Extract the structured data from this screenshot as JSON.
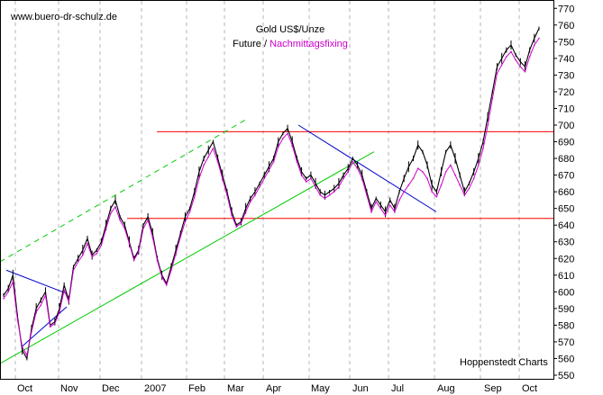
{
  "chart_data": {
    "type": "line",
    "title": "Gold US$/Unze",
    "subtitle_a": "Future",
    "subtitle_sep": " / ",
    "subtitle_b": "Nachmittagsfixing",
    "source_url": "www.buero-dr-schulz.de",
    "credit": "Hoppenstedt Charts",
    "ylim": [
      550,
      775
    ],
    "yticks": [
      550,
      560,
      570,
      580,
      590,
      600,
      610,
      620,
      630,
      640,
      650,
      660,
      670,
      680,
      690,
      700,
      710,
      720,
      730,
      740,
      750,
      760,
      770
    ],
    "xticks": [
      "Oct",
      "Nov",
      "Dec",
      "2007",
      "Feb",
      "Mar",
      "Apr",
      "May",
      "Jun",
      "Jul",
      "Aug",
      "Sep",
      "Oct"
    ],
    "grid": "vertical-dashed",
    "colors": {
      "future": "#000000",
      "fixing": "#cc00cc",
      "resistance": "#ff0000",
      "trend_up": "#00cc00",
      "trend_down": "#0000cc",
      "title": "#000000",
      "subtitle_b": "#cc00cc"
    },
    "series": [
      {
        "name": "Future",
        "values": [
          598,
          602,
          610,
          585,
          565,
          560,
          578,
          590,
          595,
          600,
          580,
          582,
          590,
          604,
          595,
          615,
          620,
          625,
          632,
          622,
          625,
          630,
          640,
          650,
          655,
          645,
          640,
          630,
          620,
          625,
          640,
          645,
          635,
          620,
          610,
          605,
          615,
          625,
          635,
          645,
          650,
          660,
          672,
          680,
          685,
          690,
          680,
          670,
          660,
          648,
          640,
          642,
          650,
          656,
          660,
          665,
          670,
          675,
          680,
          690,
          695,
          698,
          690,
          680,
          672,
          668,
          670,
          665,
          660,
          658,
          660,
          662,
          665,
          670,
          674,
          680,
          676,
          670,
          660,
          650,
          656,
          652,
          648,
          655,
          650,
          660,
          668,
          675,
          680,
          688,
          684,
          676,
          664,
          660,
          672,
          684,
          688,
          680,
          670,
          660,
          665,
          672,
          680,
          690,
          705,
          720,
          735,
          740,
          745,
          748,
          742,
          738,
          735,
          745,
          752,
          758
        ]
      },
      {
        "name": "Nachmittagsfixing",
        "values": [
          596,
          600,
          606,
          583,
          567,
          562,
          576,
          588,
          592,
          598,
          579,
          581,
          588,
          601,
          594,
          613,
          618,
          622,
          629,
          621,
          623,
          628,
          638,
          647,
          651,
          643,
          638,
          629,
          619,
          624,
          638,
          643,
          633,
          619,
          609,
          604,
          613,
          623,
          633,
          642,
          648,
          657,
          668,
          676,
          681,
          686,
          678,
          668,
          658,
          646,
          639,
          641,
          648,
          654,
          658,
          663,
          668,
          673,
          678,
          687,
          692,
          695,
          688,
          678,
          670,
          666,
          668,
          663,
          658,
          656,
          658,
          660,
          663,
          668,
          672,
          678,
          674,
          668,
          658,
          648,
          654,
          650,
          646,
          652,
          648,
          655,
          660,
          664,
          668,
          674,
          672,
          668,
          660,
          657,
          664,
          672,
          676,
          670,
          664,
          658,
          662,
          668,
          676,
          686,
          700,
          716,
          731,
          736,
          741,
          744,
          739,
          735,
          732,
          741,
          748,
          752
        ]
      }
    ],
    "lines": [
      {
        "name": "resistance-upper",
        "kind": "horizontal",
        "y": 696
      },
      {
        "name": "resistance-lower",
        "kind": "horizontal",
        "y": 644
      },
      {
        "name": "trend-up-channel-lower",
        "kind": "segment"
      },
      {
        "name": "trend-up-channel-upper",
        "kind": "segment-dashed"
      },
      {
        "name": "trend-down",
        "kind": "segment"
      },
      {
        "name": "triangle-upper",
        "kind": "segment"
      },
      {
        "name": "triangle-lower",
        "kind": "segment"
      }
    ]
  }
}
